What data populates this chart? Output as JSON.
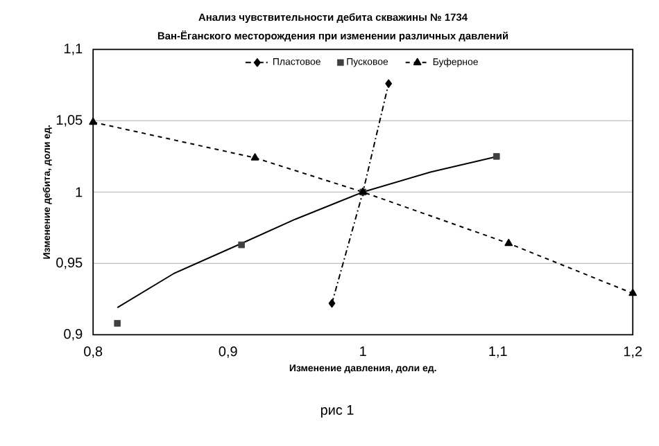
{
  "chart_data": {
    "type": "scatter",
    "title": "Анализ чувствительности дебита скважины  № 1734",
    "subtitle": "Ван-Ёганского месторождения при изменении различных давлений",
    "xlabel": "Изменение давления, доли ед.",
    "ylabel": "Изменение дебита, доли ед.",
    "annotations": [
      "рис 1"
    ],
    "xlim": [
      0.8,
      1.2
    ],
    "ylim": [
      0.9,
      1.1
    ],
    "xticks": [
      {
        "value": 0.8,
        "label": "0,8"
      },
      {
        "value": 0.9,
        "label": "0,9"
      },
      1,
      {
        "value": 1.1,
        "label": "1,1"
      },
      {
        "value": 1.2,
        "label": "1,2"
      }
    ],
    "yticks": [
      {
        "value": 0.9,
        "label": "0,9"
      },
      {
        "value": 0.95,
        "label": "0,95"
      },
      1,
      {
        "value": 1.05,
        "label": "1,05"
      },
      {
        "value": 1.1,
        "label": "1,1"
      }
    ],
    "grid": "y",
    "legend": "top",
    "series": [
      {
        "name": "Пластовое",
        "type": "line",
        "marker": "diamond",
        "line_style": "dashdot",
        "color": "#000000",
        "x": [
          0.977,
          1.0,
          1.019
        ],
        "values": [
          0.922,
          1.0,
          1.076
        ]
      },
      {
        "name": "Пусковое",
        "marker": "square",
        "color": "#404040",
        "x": [
          0.818,
          0.91,
          1.0,
          1.099
        ],
        "values": [
          0.908,
          0.963,
          1.0,
          1.025
        ]
      },
      {
        "name": "Буферное",
        "type": "line",
        "marker": "triangle",
        "line_style": "dashed",
        "color": "#000000",
        "x": [
          0.8,
          0.92,
          1.0,
          1.108,
          1.2
        ],
        "values": [
          1.049,
          1.024,
          1.0,
          0.964,
          0.929
        ]
      },
      {
        "type": "line",
        "marker": "none",
        "line_style": "solid",
        "color": "#000000",
        "x": [
          0.818,
          0.86,
          0.91,
          0.95,
          1.0,
          1.05,
          1.1
        ],
        "values": [
          0.919,
          0.943,
          0.964,
          0.981,
          1.0,
          1.014,
          1.025
        ]
      }
    ]
  }
}
